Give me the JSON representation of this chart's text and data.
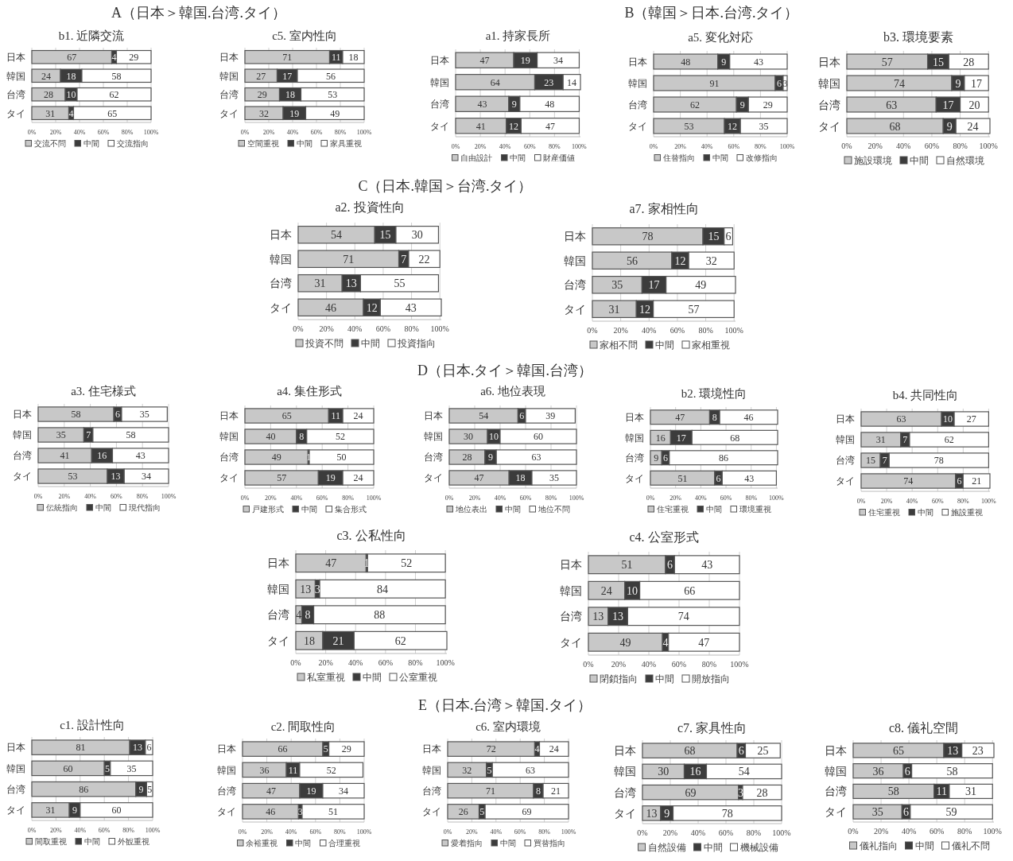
{
  "chart_data": [
    {
      "type": "other",
      "title": "A（日本＞韓国.台湾.タイ）"
    },
    {
      "type": "bar",
      "title": "b1.  近隣交流",
      "orientation": "horizontal",
      "stacked": true,
      "categories": [
        "日本",
        "韓国",
        "台湾",
        "タイ"
      ],
      "series": [
        {
          "name": "交流不問",
          "color": "#c8c8c8",
          "values": [
            67,
            24,
            28,
            31
          ]
        },
        {
          "name": "中間",
          "color": "#3c3c3c",
          "values": [
            4,
            18,
            10,
            4
          ]
        },
        {
          "name": "交流指向",
          "color": "#ffffff",
          "values": [
            29,
            58,
            62,
            65
          ]
        }
      ],
      "xlim": [
        0,
        100
      ],
      "xticks": [
        {
          "value": 0,
          "label": "0%"
        },
        {
          "value": 20,
          "label": "20%"
        },
        {
          "value": 40,
          "label": "40%"
        },
        {
          "value": 60,
          "label": "60%"
        },
        {
          "value": 80,
          "label": "80%"
        },
        {
          "value": 100,
          "label": "100%"
        }
      ],
      "grid": "x",
      "legend": "bottom",
      "data_labels": true
    },
    {
      "type": "bar",
      "title": "c5.  室内性向",
      "orientation": "horizontal",
      "stacked": true,
      "categories": [
        "日本",
        "韓国",
        "台湾",
        "タイ"
      ],
      "series": [
        {
          "name": "空間重視",
          "color": "#c8c8c8",
          "values": [
            71,
            27,
            29,
            32
          ]
        },
        {
          "name": "中間",
          "color": "#3c3c3c",
          "values": [
            11,
            17,
            18,
            19
          ]
        },
        {
          "name": "家具重視",
          "color": "#ffffff",
          "values": [
            18,
            56,
            53,
            49
          ]
        }
      ],
      "xlim": [
        0,
        100
      ],
      "xticks": [
        {
          "value": 0,
          "label": "0%"
        },
        {
          "value": 20,
          "label": "20%"
        },
        {
          "value": 40,
          "label": "40%"
        },
        {
          "value": 60,
          "label": "60%"
        },
        {
          "value": 80,
          "label": "80%"
        },
        {
          "value": 100,
          "label": "100%"
        }
      ],
      "grid": "x",
      "legend": "bottom",
      "data_labels": true
    },
    {
      "type": "other",
      "title": "B（韓国＞日本.台湾.タイ）"
    },
    {
      "type": "bar",
      "title": "a1.  持家長所",
      "orientation": "horizontal",
      "stacked": true,
      "categories": [
        "日本",
        "韓国",
        "台湾",
        "タイ"
      ],
      "series": [
        {
          "name": "自由設計",
          "color": "#c8c8c8",
          "values": [
            47,
            64,
            43,
            41
          ]
        },
        {
          "name": "中間",
          "color": "#3c3c3c",
          "values": [
            19,
            23,
            9,
            12
          ]
        },
        {
          "name": "財産価値",
          "color": "#ffffff",
          "values": [
            34,
            14,
            48,
            47
          ]
        }
      ],
      "xlim": [
        0,
        101
      ],
      "xticks": [
        {
          "value": 0,
          "label": "0%"
        },
        {
          "value": 20,
          "label": "20%"
        },
        {
          "value": 40,
          "label": "40%"
        },
        {
          "value": 60,
          "label": "60%"
        },
        {
          "value": 80,
          "label": "80%"
        },
        {
          "value": 100,
          "label": "100%"
        }
      ],
      "grid": "x",
      "legend": "bottom",
      "data_labels": true
    },
    {
      "type": "bar",
      "title": "a5.  変化対応",
      "orientation": "horizontal",
      "stacked": true,
      "categories": [
        "日本",
        "韓国",
        "台湾",
        "タイ"
      ],
      "series": [
        {
          "name": "住替指向",
          "color": "#c8c8c8",
          "values": [
            48,
            91,
            62,
            53
          ]
        },
        {
          "name": "中間",
          "color": "#3c3c3c",
          "values": [
            9,
            6,
            9,
            12
          ]
        },
        {
          "name": "改修指向",
          "color": "#ffffff",
          "values": [
            43,
            3,
            29,
            35
          ]
        }
      ],
      "xlim": [
        0,
        100
      ],
      "xticks": [
        {
          "value": 0,
          "label": "0%"
        },
        {
          "value": 20,
          "label": "20%"
        },
        {
          "value": 40,
          "label": "40%"
        },
        {
          "value": 60,
          "label": "60%"
        },
        {
          "value": 80,
          "label": "80%"
        },
        {
          "value": 100,
          "label": "100%"
        }
      ],
      "grid": "x",
      "legend": "bottom",
      "data_labels": true
    },
    {
      "type": "bar",
      "title": "b3.  環境要素",
      "orientation": "horizontal",
      "stacked": true,
      "categories": [
        "日本",
        "韓国",
        "台湾",
        "タイ"
      ],
      "series": [
        {
          "name": "施設環境",
          "color": "#c8c8c8",
          "values": [
            57,
            74,
            63,
            68
          ]
        },
        {
          "name": "中間",
          "color": "#3c3c3c",
          "values": [
            15,
            9,
            17,
            9
          ]
        },
        {
          "name": "自然環境",
          "color": "#ffffff",
          "values": [
            28,
            17,
            20,
            24
          ]
        }
      ],
      "xlim": [
        0,
        101
      ],
      "xticks": [
        {
          "value": 0,
          "label": "0%"
        },
        {
          "value": 20,
          "label": "20%"
        },
        {
          "value": 40,
          "label": "40%"
        },
        {
          "value": 60,
          "label": "60%"
        },
        {
          "value": 80,
          "label": "80%"
        },
        {
          "value": 100,
          "label": "100%"
        }
      ],
      "grid": "x",
      "legend": "bottom",
      "data_labels": true
    },
    {
      "type": "other",
      "title": "C（日本.韓国＞台湾.タイ）"
    },
    {
      "type": "bar",
      "title": "a2.  投資性向",
      "orientation": "horizontal",
      "stacked": true,
      "categories": [
        "日本",
        "韓国",
        "台湾",
        "タイ"
      ],
      "series": [
        {
          "name": "投資不問",
          "color": "#c8c8c8",
          "values": [
            54,
            71,
            31,
            46
          ]
        },
        {
          "name": "中間",
          "color": "#3c3c3c",
          "values": [
            15,
            7,
            13,
            12
          ]
        },
        {
          "name": "投資指向",
          "color": "#ffffff",
          "values": [
            30,
            22,
            55,
            43
          ]
        }
      ],
      "xlim": [
        0,
        101
      ],
      "xticks": [
        {
          "value": 0,
          "label": "0%"
        },
        {
          "value": 20,
          "label": "20%"
        },
        {
          "value": 40,
          "label": "40%"
        },
        {
          "value": 60,
          "label": "60%"
        },
        {
          "value": 80,
          "label": "80%"
        },
        {
          "value": 100,
          "label": "100%"
        }
      ],
      "grid": "x",
      "legend": "bottom",
      "data_labels": true
    },
    {
      "type": "bar",
      "title": "a7.  家相性向",
      "orientation": "horizontal",
      "stacked": true,
      "categories": [
        "日本",
        "韓国",
        "台湾",
        "タイ"
      ],
      "series": [
        {
          "name": "家相不問",
          "color": "#c8c8c8",
          "values": [
            78,
            56,
            35,
            31
          ]
        },
        {
          "name": "中間",
          "color": "#3c3c3c",
          "values": [
            15,
            12,
            17,
            12
          ]
        },
        {
          "name": "家相重視",
          "color": "#ffffff",
          "values": [
            6,
            32,
            49,
            57
          ]
        }
      ],
      "xlim": [
        0,
        101
      ],
      "xticks": [
        {
          "value": 0,
          "label": "0%"
        },
        {
          "value": 20,
          "label": "20%"
        },
        {
          "value": 40,
          "label": "40%"
        },
        {
          "value": 60,
          "label": "60%"
        },
        {
          "value": 80,
          "label": "80%"
        },
        {
          "value": 100,
          "label": "100%"
        }
      ],
      "grid": "x",
      "legend": "bottom",
      "data_labels": true
    },
    {
      "type": "other",
      "title": "D（日本.タイ＞韓国.台湾）"
    },
    {
      "type": "bar",
      "title": "a3.  住宅様式",
      "orientation": "horizontal",
      "stacked": true,
      "categories": [
        "日本",
        "韓国",
        "台湾",
        "タイ"
      ],
      "series": [
        {
          "name": "伝統指向",
          "color": "#c8c8c8",
          "values": [
            58,
            35,
            41,
            53
          ]
        },
        {
          "name": "中間",
          "color": "#3c3c3c",
          "values": [
            6,
            7,
            16,
            13
          ]
        },
        {
          "name": "現代指向",
          "color": "#ffffff",
          "values": [
            35,
            58,
            43,
            34
          ]
        }
      ],
      "xlim": [
        0,
        100
      ],
      "xticks": [
        {
          "value": 0,
          "label": "0%"
        },
        {
          "value": 20,
          "label": "20%"
        },
        {
          "value": 40,
          "label": "40%"
        },
        {
          "value": 60,
          "label": "60%"
        },
        {
          "value": 80,
          "label": "80%"
        },
        {
          "value": 100,
          "label": "100%"
        }
      ],
      "grid": "x",
      "legend": "bottom",
      "data_labels": true
    },
    {
      "type": "bar",
      "title": "a4.  集住形式",
      "orientation": "horizontal",
      "stacked": true,
      "categories": [
        "日本",
        "韓国",
        "台湾",
        "タイ"
      ],
      "series": [
        {
          "name": "戸建形式",
          "color": "#c8c8c8",
          "values": [
            65,
            40,
            49,
            57
          ]
        },
        {
          "name": "中間",
          "color": "#3c3c3c",
          "values": [
            11,
            8,
            1,
            19
          ]
        },
        {
          "name": "集合形式",
          "color": "#ffffff",
          "values": [
            24,
            52,
            50,
            24
          ]
        }
      ],
      "xlim": [
        0,
        100
      ],
      "xticks": [
        {
          "value": 0,
          "label": "0%"
        },
        {
          "value": 20,
          "label": "20%"
        },
        {
          "value": 40,
          "label": "40%"
        },
        {
          "value": 60,
          "label": "60%"
        },
        {
          "value": 80,
          "label": "80%"
        },
        {
          "value": 100,
          "label": "100%"
        }
      ],
      "grid": "x",
      "legend": "bottom",
      "data_labels": true
    },
    {
      "type": "bar",
      "title": "a6.  地位表現",
      "orientation": "horizontal",
      "stacked": true,
      "categories": [
        "日本",
        "韓国",
        "台湾",
        "タイ"
      ],
      "series": [
        {
          "name": "地位表出",
          "color": "#c8c8c8",
          "values": [
            54,
            30,
            28,
            47
          ]
        },
        {
          "name": "中間",
          "color": "#3c3c3c",
          "values": [
            6,
            10,
            9,
            18
          ]
        },
        {
          "name": "地位不問",
          "color": "#ffffff",
          "values": [
            39,
            60,
            63,
            35
          ]
        }
      ],
      "xlim": [
        0,
        100
      ],
      "xticks": [
        {
          "value": 0,
          "label": "0%"
        },
        {
          "value": 20,
          "label": "20%"
        },
        {
          "value": 40,
          "label": "40%"
        },
        {
          "value": 60,
          "label": "60%"
        },
        {
          "value": 80,
          "label": "80%"
        },
        {
          "value": 100,
          "label": "100%"
        }
      ],
      "grid": "x",
      "legend": "bottom",
      "data_labels": true
    },
    {
      "type": "bar",
      "title": "b2.  環境性向",
      "orientation": "horizontal",
      "stacked": true,
      "categories": [
        "日本",
        "韓国",
        "台湾",
        "タイ"
      ],
      "series": [
        {
          "name": "住宅重視",
          "color": "#c8c8c8",
          "values": [
            47,
            16,
            9,
            51
          ]
        },
        {
          "name": "中間",
          "color": "#3c3c3c",
          "values": [
            8,
            17,
            6,
            6
          ]
        },
        {
          "name": "環境重視",
          "color": "#ffffff",
          "values": [
            46,
            68,
            86,
            43
          ]
        }
      ],
      "xlim": [
        0,
        101
      ],
      "xticks": [
        {
          "value": 0,
          "label": "0%"
        },
        {
          "value": 20,
          "label": "20%"
        },
        {
          "value": 40,
          "label": "40%"
        },
        {
          "value": 60,
          "label": "60%"
        },
        {
          "value": 80,
          "label": "80%"
        },
        {
          "value": 100,
          "label": "100%"
        }
      ],
      "grid": "x",
      "legend": "bottom",
      "data_labels": true
    },
    {
      "type": "bar",
      "title": "b4.  共同性向",
      "orientation": "horizontal",
      "stacked": true,
      "categories": [
        "日本",
        "韓国",
        "台湾",
        "タイ"
      ],
      "series": [
        {
          "name": "住宅重視",
          "color": "#c8c8c8",
          "values": [
            63,
            31,
            15,
            74
          ]
        },
        {
          "name": "中間",
          "color": "#3c3c3c",
          "values": [
            10,
            7,
            7,
            6
          ]
        },
        {
          "name": "施設重視",
          "color": "#ffffff",
          "values": [
            27,
            62,
            78,
            21
          ]
        }
      ],
      "xlim": [
        0,
        101
      ],
      "xticks": [
        {
          "value": 0,
          "label": "0%"
        },
        {
          "value": 20,
          "label": "20%"
        },
        {
          "value": 40,
          "label": "40%"
        },
        {
          "value": 60,
          "label": "60%"
        },
        {
          "value": 80,
          "label": "80%"
        },
        {
          "value": 100,
          "label": "100%"
        }
      ],
      "grid": "x",
      "legend": "bottom",
      "data_labels": true
    },
    {
      "type": "bar",
      "title": "c3.  公私性向",
      "orientation": "horizontal",
      "stacked": true,
      "categories": [
        "日本",
        "韓国",
        "台湾",
        "タイ"
      ],
      "series": [
        {
          "name": "私室重視",
          "color": "#c8c8c8",
          "values": [
            47,
            13,
            4,
            18
          ]
        },
        {
          "name": "中間",
          "color": "#3c3c3c",
          "values": [
            1,
            3,
            8,
            21
          ]
        },
        {
          "name": "公室重視",
          "color": "#ffffff",
          "values": [
            52,
            84,
            88,
            62
          ]
        }
      ],
      "xlim": [
        0,
        101
      ],
      "xticks": [
        {
          "value": 0,
          "label": "0%"
        },
        {
          "value": 20,
          "label": "20%"
        },
        {
          "value": 40,
          "label": "40%"
        },
        {
          "value": 60,
          "label": "60%"
        },
        {
          "value": 80,
          "label": "80%"
        },
        {
          "value": 100,
          "label": "100%"
        }
      ],
      "grid": "x",
      "legend": "bottom",
      "data_labels": true
    },
    {
      "type": "bar",
      "title": "c4.  公室形式",
      "orientation": "horizontal",
      "stacked": true,
      "categories": [
        "日本",
        "韓国",
        "台湾",
        "タイ"
      ],
      "series": [
        {
          "name": "閉鎖指向",
          "color": "#c8c8c8",
          "values": [
            51,
            24,
            13,
            49
          ]
        },
        {
          "name": "中間",
          "color": "#3c3c3c",
          "values": [
            6,
            10,
            13,
            4
          ]
        },
        {
          "name": "開放指向",
          "color": "#ffffff",
          "values": [
            43,
            66,
            74,
            47
          ]
        }
      ],
      "xlim": [
        0,
        100
      ],
      "xticks": [
        {
          "value": 0,
          "label": "0%"
        },
        {
          "value": 20,
          "label": "20%"
        },
        {
          "value": 40,
          "label": "40%"
        },
        {
          "value": 60,
          "label": "60%"
        },
        {
          "value": 80,
          "label": "80%"
        },
        {
          "value": 100,
          "label": "100%"
        }
      ],
      "grid": "x",
      "legend": "bottom",
      "data_labels": true
    },
    {
      "type": "other",
      "title": "E（日本.台湾＞韓国.タイ）"
    },
    {
      "type": "bar",
      "title": "c1.  設計性向",
      "orientation": "horizontal",
      "stacked": true,
      "categories": [
        "日本",
        "韓国",
        "台湾",
        "タイ"
      ],
      "series": [
        {
          "name": "間取重視",
          "color": "#c8c8c8",
          "values": [
            81,
            60,
            86,
            31
          ]
        },
        {
          "name": "中間",
          "color": "#3c3c3c",
          "values": [
            13,
            5,
            9,
            9
          ]
        },
        {
          "name": "外観重視",
          "color": "#ffffff",
          "values": [
            6,
            35,
            5,
            60
          ]
        }
      ],
      "xlim": [
        0,
        100
      ],
      "xticks": [
        {
          "value": 0,
          "label": "0%"
        },
        {
          "value": 20,
          "label": "20%"
        },
        {
          "value": 40,
          "label": "40%"
        },
        {
          "value": 60,
          "label": "60%"
        },
        {
          "value": 80,
          "label": "80%"
        },
        {
          "value": 100,
          "label": "100%"
        }
      ],
      "grid": "x",
      "legend": "bottom",
      "data_labels": true
    },
    {
      "type": "bar",
      "title": "c2.  間取性向",
      "orientation": "horizontal",
      "stacked": true,
      "categories": [
        "日本",
        "韓国",
        "台湾",
        "タイ"
      ],
      "series": [
        {
          "name": "余裕重視",
          "color": "#c8c8c8",
          "values": [
            66,
            36,
            47,
            46
          ]
        },
        {
          "name": "中間",
          "color": "#3c3c3c",
          "values": [
            5,
            11,
            19,
            3
          ]
        },
        {
          "name": "合理重視",
          "color": "#ffffff",
          "values": [
            29,
            52,
            34,
            51
          ]
        }
      ],
      "xlim": [
        0,
        100
      ],
      "xticks": [
        {
          "value": 0,
          "label": "0%"
        },
        {
          "value": 20,
          "label": "20%"
        },
        {
          "value": 40,
          "label": "40%"
        },
        {
          "value": 60,
          "label": "60%"
        },
        {
          "value": 80,
          "label": "80%"
        },
        {
          "value": 100,
          "label": "100%"
        }
      ],
      "grid": "x",
      "legend": "bottom",
      "data_labels": true
    },
    {
      "type": "bar",
      "title": "c6.  室内環境",
      "orientation": "horizontal",
      "stacked": true,
      "categories": [
        "日本",
        "韓国",
        "台湾",
        "タイ"
      ],
      "series": [
        {
          "name": "愛着指向",
          "color": "#c8c8c8",
          "values": [
            72,
            32,
            71,
            26
          ]
        },
        {
          "name": "中間",
          "color": "#3c3c3c",
          "values": [
            4,
            5,
            8,
            5
          ]
        },
        {
          "name": "買替指向",
          "color": "#ffffff",
          "values": [
            24,
            63,
            21,
            69
          ]
        }
      ],
      "xlim": [
        0,
        100
      ],
      "xticks": [
        {
          "value": 0,
          "label": "0%"
        },
        {
          "value": 20,
          "label": "20%"
        },
        {
          "value": 40,
          "label": "40%"
        },
        {
          "value": 60,
          "label": "60%"
        },
        {
          "value": 80,
          "label": "80%"
        },
        {
          "value": 100,
          "label": "100%"
        }
      ],
      "grid": "x",
      "legend": "bottom",
      "data_labels": true
    },
    {
      "type": "bar",
      "title": "c7.  家具性向",
      "orientation": "horizontal",
      "stacked": true,
      "categories": [
        "日本",
        "韓国",
        "台湾",
        "タイ"
      ],
      "series": [
        {
          "name": "自然設備",
          "color": "#c8c8c8",
          "values": [
            68,
            30,
            69,
            13
          ]
        },
        {
          "name": "中間",
          "color": "#3c3c3c",
          "values": [
            6,
            16,
            3,
            9
          ]
        },
        {
          "name": "機械設備",
          "color": "#ffffff",
          "values": [
            25,
            54,
            28,
            78
          ]
        }
      ],
      "xlim": [
        0,
        100
      ],
      "xticks": [
        {
          "value": 0,
          "label": "0%"
        },
        {
          "value": 20,
          "label": "20%"
        },
        {
          "value": 40,
          "label": "40%"
        },
        {
          "value": 60,
          "label": "60%"
        },
        {
          "value": 80,
          "label": "80%"
        },
        {
          "value": 100,
          "label": "100%"
        }
      ],
      "grid": "x",
      "legend": "bottom",
      "data_labels": true
    },
    {
      "type": "bar",
      "title": "c8.  儀礼空間",
      "orientation": "horizontal",
      "stacked": true,
      "categories": [
        "日本",
        "韓国",
        "台湾",
        "タイ"
      ],
      "series": [
        {
          "name": "儀礼指向",
          "color": "#c8c8c8",
          "values": [
            65,
            36,
            58,
            35
          ]
        },
        {
          "name": "中間",
          "color": "#3c3c3c",
          "values": [
            13,
            6,
            11,
            6
          ]
        },
        {
          "name": "儀礼不問",
          "color": "#ffffff",
          "values": [
            23,
            58,
            31,
            59
          ]
        }
      ],
      "xlim": [
        0,
        101
      ],
      "xticks": [
        {
          "value": 0,
          "label": "0%"
        },
        {
          "value": 20,
          "label": "20%"
        },
        {
          "value": 40,
          "label": "40%"
        },
        {
          "value": 60,
          "label": "60%"
        },
        {
          "value": 80,
          "label": "80%"
        },
        {
          "value": 100,
          "label": "100%"
        }
      ],
      "grid": "x",
      "legend": "bottom",
      "data_labels": true
    }
  ]
}
